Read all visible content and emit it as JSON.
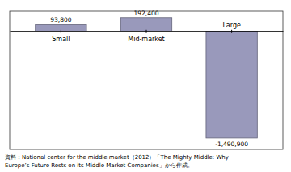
{
  "chart_data": {
    "type": "bar",
    "categories": [
      "Small",
      "Mid-market",
      "Large"
    ],
    "values": [
      93800,
      192400,
      -1490900
    ],
    "value_labels": [
      "93,800",
      "192,400",
      "-1,490,900"
    ],
    "data_labels": true,
    "color": "#9999bb",
    "ylim": [
      -1650000,
      280000
    ],
    "tick_labels": "x",
    "grid": false,
    "annotations": [
      "資料：National center for the middle market（2012）「The Mighty Middle: Why",
      "Europe’s Future Rests on its Middle Market Companies」から作成。"
    ]
  }
}
